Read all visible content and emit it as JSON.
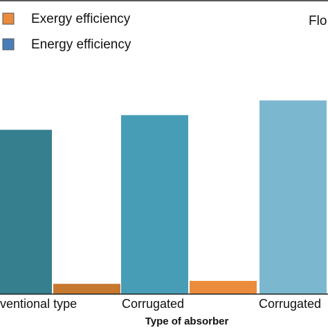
{
  "chart_data": {
    "type": "bar",
    "title": "",
    "xlabel": "Type of absorber",
    "ylabel": "",
    "categories": [
      "Conventional type",
      "Corrugated",
      "Corrugated"
    ],
    "visible_tick_text": [
      "nventional type",
      "Corrugated",
      "Corrugated"
    ],
    "series": [
      {
        "name": "Energy efficiency",
        "values": [
          56,
          61,
          66
        ],
        "colors": [
          "#367f8f",
          "#479db6",
          "#7bb8cf"
        ]
      },
      {
        "name": "Exergy efficiency",
        "values": [
          3.5,
          4.5,
          5.5
        ],
        "colors": [
          "#c6782f",
          "#ea8c3c",
          "#ea8c3c"
        ]
      }
    ],
    "ylim": [
      0,
      100
    ],
    "grid": false,
    "legend_position": "top-left",
    "corner_text": "Flo",
    "legend_colors": {
      "Exergy efficiency": "#ea8c3c",
      "Energy efficiency": "#4a7db8"
    }
  }
}
